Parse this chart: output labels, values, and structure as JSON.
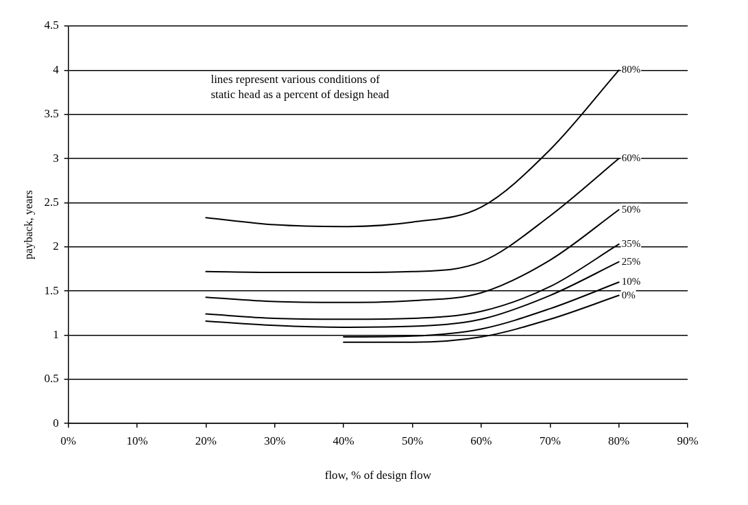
{
  "chart_data": {
    "type": "line",
    "xlabel": "flow, % of design flow",
    "ylabel": "payback, years",
    "annotations": [
      "lines represent various conditions of\nstatic head as a percent of design head"
    ],
    "series": [
      {
        "name": "80%",
        "color": "#000000",
        "x": [
          20,
          30,
          40,
          50,
          60,
          70,
          80
        ],
        "values": [
          2.33,
          2.25,
          2.23,
          2.28,
          2.45,
          3.1,
          4.0
        ]
      },
      {
        "name": "60%",
        "color": "#000000",
        "x": [
          20,
          30,
          40,
          50,
          60,
          70,
          80
        ],
        "values": [
          1.72,
          1.71,
          1.71,
          1.72,
          1.83,
          2.35,
          3.0
        ]
      },
      {
        "name": "50%",
        "color": "#000000",
        "x": [
          20,
          30,
          40,
          50,
          60,
          70,
          80
        ],
        "values": [
          1.43,
          1.38,
          1.37,
          1.39,
          1.48,
          1.85,
          2.42
        ]
      },
      {
        "name": "35%",
        "color": "#000000",
        "x": [
          20,
          30,
          40,
          50,
          60,
          70,
          80
        ],
        "values": [
          1.24,
          1.19,
          1.18,
          1.19,
          1.27,
          1.55,
          2.03
        ]
      },
      {
        "name": "25%",
        "color": "#000000",
        "x": [
          20,
          30,
          40,
          50,
          60,
          70,
          80
        ],
        "values": [
          1.16,
          1.11,
          1.09,
          1.1,
          1.18,
          1.45,
          1.83
        ]
      },
      {
        "name": "10%",
        "color": "#000000",
        "x": [
          40,
          50,
          60,
          70,
          80
        ],
        "values": [
          0.98,
          0.99,
          1.07,
          1.3,
          1.6
        ]
      },
      {
        "name": "0%",
        "color": "#000000",
        "x": [
          40,
          50,
          60,
          70,
          80
        ],
        "values": [
          0.92,
          0.92,
          0.98,
          1.18,
          1.45
        ]
      }
    ],
    "xlim": [
      0,
      90
    ],
    "xticks": [
      {
        "value": 0,
        "label": "0%"
      },
      {
        "value": 10,
        "label": "10%"
      },
      {
        "value": 20,
        "label": "20%"
      },
      {
        "value": 30,
        "label": "30%"
      },
      {
        "value": 40,
        "label": "40%"
      },
      {
        "value": 50,
        "label": "50%"
      },
      {
        "value": 60,
        "label": "60%"
      },
      {
        "value": 70,
        "label": "70%"
      },
      {
        "value": 80,
        "label": "80%"
      },
      {
        "value": 90,
        "label": "90%"
      }
    ],
    "ylim": [
      0,
      4.5
    ],
    "yticks": [
      0,
      0.5,
      1,
      1.5,
      2,
      2.5,
      3,
      3.5,
      4,
      4.5
    ],
    "grid": "y",
    "legend": false,
    "marker": "none",
    "line_style": "solid"
  }
}
